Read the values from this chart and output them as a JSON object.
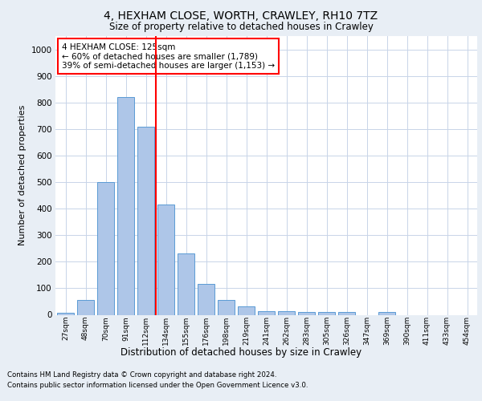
{
  "title1": "4, HEXHAM CLOSE, WORTH, CRAWLEY, RH10 7TZ",
  "title2": "Size of property relative to detached houses in Crawley",
  "xlabel": "Distribution of detached houses by size in Crawley",
  "ylabel": "Number of detached properties",
  "categories": [
    "27sqm",
    "48sqm",
    "70sqm",
    "91sqm",
    "112sqm",
    "134sqm",
    "155sqm",
    "176sqm",
    "198sqm",
    "219sqm",
    "241sqm",
    "262sqm",
    "283sqm",
    "305sqm",
    "326sqm",
    "347sqm",
    "369sqm",
    "390sqm",
    "411sqm",
    "433sqm",
    "454sqm"
  ],
  "values": [
    8,
    57,
    500,
    820,
    710,
    415,
    230,
    115,
    55,
    32,
    15,
    15,
    10,
    12,
    10,
    0,
    10,
    0,
    0,
    0,
    0
  ],
  "bar_color": "#aec6e8",
  "bar_edge_color": "#5b9bd5",
  "vline_color": "red",
  "annotation_text": "4 HEXHAM CLOSE: 125sqm\n← 60% of detached houses are smaller (1,789)\n39% of semi-detached houses are larger (1,153) →",
  "annotation_box_color": "white",
  "annotation_box_edgecolor": "red",
  "ylim": [
    0,
    1050
  ],
  "yticks": [
    0,
    100,
    200,
    300,
    400,
    500,
    600,
    700,
    800,
    900,
    1000
  ],
  "footer1": "Contains HM Land Registry data © Crown copyright and database right 2024.",
  "footer2": "Contains public sector information licensed under the Open Government Licence v3.0.",
  "bg_color": "#e8eef5",
  "plot_bg_color": "white",
  "grid_color": "#c8d4e8"
}
